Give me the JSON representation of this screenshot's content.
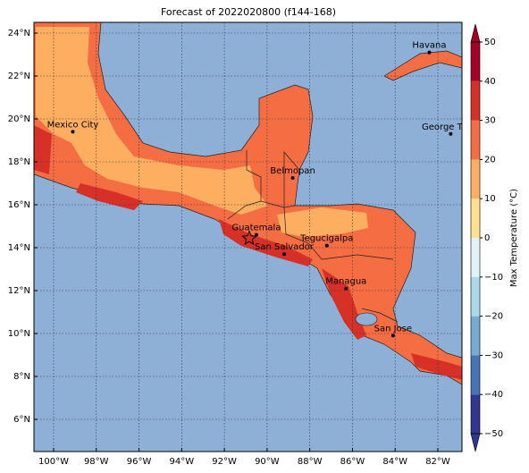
{
  "map": {
    "title": "Forecast of 2022020800 (f144-168)",
    "xlim": [
      -100.92,
      -80.87
    ],
    "ylim": [
      4.5,
      24.5
    ],
    "xticks": [
      {
        "value": -100,
        "label": "100°W"
      },
      {
        "value": -98,
        "label": "98°W"
      },
      {
        "value": -96,
        "label": "96°W"
      },
      {
        "value": -94,
        "label": "94°W"
      },
      {
        "value": -92,
        "label": "92°W"
      },
      {
        "value": -90,
        "label": "90°W"
      },
      {
        "value": -88,
        "label": "88°W"
      },
      {
        "value": -86,
        "label": "86°W"
      },
      {
        "value": -84,
        "label": "84°W"
      },
      {
        "value": -82,
        "label": "82°W"
      }
    ],
    "yticks": [
      {
        "value": 6,
        "label": "6°N"
      },
      {
        "value": 8,
        "label": "8°N"
      },
      {
        "value": 10,
        "label": "10°N"
      },
      {
        "value": 12,
        "label": "12°N"
      },
      {
        "value": 14,
        "label": "14°N"
      },
      {
        "value": 16,
        "label": "16°N"
      },
      {
        "value": 18,
        "label": "18°N"
      },
      {
        "value": 20,
        "label": "20°N"
      },
      {
        "value": 22,
        "label": "22°N"
      },
      {
        "value": 24,
        "label": "24°N"
      }
    ],
    "grid": true,
    "cities": [
      {
        "name": "Havana",
        "lon": -82.4,
        "lat": 23.1
      },
      {
        "name": "Mexico City",
        "lon": -99.1,
        "lat": 19.4
      },
      {
        "name": "George Town",
        "lon": -81.4,
        "lat": 19.3
      },
      {
        "name": "Belmopan",
        "lon": -88.8,
        "lat": 17.25
      },
      {
        "name": "Guatemala",
        "lon": -90.5,
        "lat": 14.6
      },
      {
        "name": "Tegucigalpa",
        "lon": -87.2,
        "lat": 14.1
      },
      {
        "name": "San Salvador",
        "lon": -89.2,
        "lat": 13.7
      },
      {
        "name": "Managua",
        "lon": -86.3,
        "lat": 12.1
      },
      {
        "name": "San Jose",
        "lon": -84.1,
        "lat": 9.9
      }
    ],
    "colorbar": {
      "label": "Max Temperature (°C)",
      "lim": [
        -50,
        50
      ],
      "ticks": [
        {
          "value": -50,
          "label": "−50"
        },
        {
          "value": -40,
          "label": "−40"
        },
        {
          "value": -30,
          "label": "−30"
        },
        {
          "value": -20,
          "label": "−20"
        },
        {
          "value": -10,
          "label": "−10"
        },
        0,
        10,
        20,
        30,
        40,
        50
      ],
      "colors": [
        "#313695",
        "#4575b4",
        "#74add1",
        "#abd9e9",
        "#e0f3f8",
        "#ffffbf",
        "#fee090",
        "#fdae61",
        "#f46d43",
        "#d73027",
        "#a50026"
      ]
    }
  }
}
